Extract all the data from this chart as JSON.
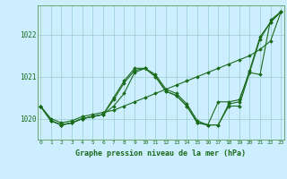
{
  "xlabel": "Graphe pression niveau de la mer (hPa)",
  "background_color": "#cceeff",
  "grid_color": "#99cccc",
  "line_color": "#1a6b1a",
  "marker_color": "#1a6b1a",
  "ylabel_ticks": [
    1020,
    1021,
    1022
  ],
  "xticks": [
    0,
    1,
    2,
    3,
    4,
    5,
    6,
    7,
    8,
    9,
    10,
    11,
    12,
    13,
    14,
    15,
    16,
    17,
    18,
    19,
    20,
    21,
    22,
    23
  ],
  "ylim": [
    1019.5,
    1022.7
  ],
  "xlim": [
    -0.3,
    23.3
  ],
  "series": [
    [
      1020.3,
      1020.0,
      1019.9,
      1019.95,
      1020.05,
      1020.1,
      1020.15,
      1020.2,
      1020.3,
      1020.4,
      1020.5,
      1020.6,
      1020.7,
      1020.8,
      1020.9,
      1021.0,
      1021.1,
      1021.2,
      1021.3,
      1021.4,
      1021.5,
      1021.65,
      1021.85,
      1022.55
    ],
    [
      1020.3,
      1019.95,
      1019.85,
      1019.9,
      1020.0,
      1020.05,
      1020.1,
      1020.5,
      1020.9,
      1021.2,
      1021.2,
      1021.05,
      1020.7,
      1020.6,
      1020.35,
      1019.95,
      1019.85,
      1019.85,
      1020.35,
      1020.4,
      1021.15,
      1021.95,
      1022.3,
      1022.55
    ],
    [
      1020.3,
      1019.95,
      1019.85,
      1019.9,
      1020.0,
      1020.05,
      1020.1,
      1020.45,
      1020.85,
      1021.15,
      1021.2,
      1021.0,
      1020.65,
      1020.55,
      1020.3,
      1019.9,
      1019.85,
      1020.4,
      1020.4,
      1020.45,
      1021.1,
      1021.05,
      1022.35,
      1022.55
    ],
    [
      1020.3,
      1019.95,
      1019.85,
      1019.9,
      1020.0,
      1020.05,
      1020.1,
      1020.3,
      1020.6,
      1021.1,
      1021.2,
      1021.0,
      1020.65,
      1020.55,
      1020.3,
      1019.9,
      1019.85,
      1019.85,
      1020.3,
      1020.3,
      1021.1,
      1021.9,
      1022.3,
      1022.55
    ]
  ]
}
